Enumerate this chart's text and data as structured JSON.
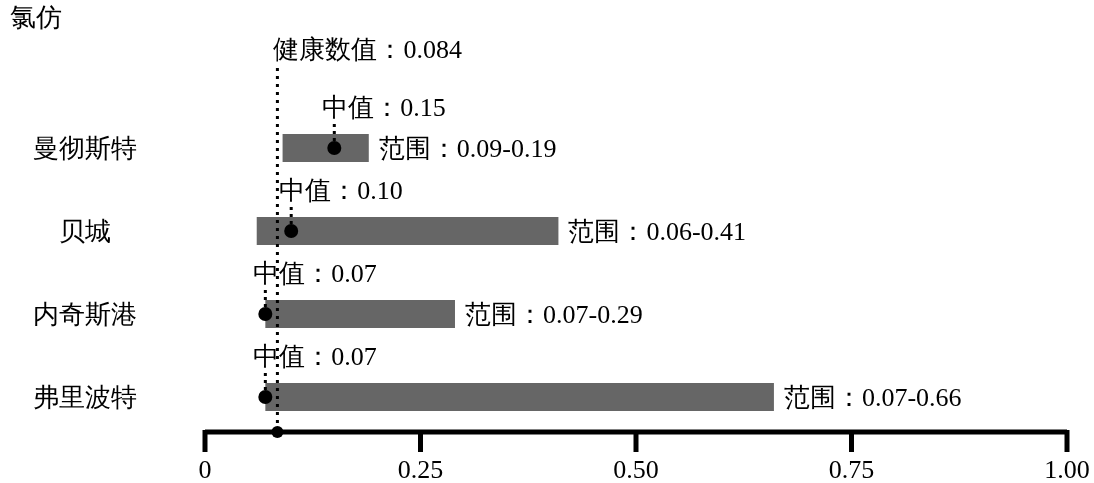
{
  "chart_data": {
    "type": "bar",
    "orientation": "horizontal",
    "title": "氯仿",
    "categories": [
      "曼彻斯特",
      "贝城",
      "内奇斯港",
      "弗里波特"
    ],
    "series": [
      {
        "color": "#666666",
        "base": [
          0.09,
          0.06,
          0.07,
          0.07
        ],
        "values": [
          0.1,
          0.35,
          0.22,
          0.59
        ],
        "value_labels": [
          "范围：0.09-0.19",
          "范围：0.06-0.41",
          "范围：0.07-0.29",
          "范围：0.07-0.66"
        ]
      },
      {
        "type": "scatter",
        "marker": "circle",
        "color": "#000000",
        "values": [
          0.15,
          0.1,
          0.07,
          0.07
        ],
        "value_labels": [
          "中值：0.15",
          "中值：0.10",
          "中值：0.07",
          "中值：0.07"
        ]
      }
    ],
    "ref_lines": [
      {
        "axis": "x",
        "value": 0.084,
        "label": "健康数值：0.084",
        "line_style": "dotted",
        "color": "#000000"
      }
    ],
    "xlim": [
      0,
      1
    ],
    "xticks": [
      0,
      0.25,
      {
        "value": 0.5,
        "label": "0.50"
      },
      {
        "value": 0.75,
        "label": "0.75"
      },
      {
        "value": 1,
        "label": "1.00"
      }
    ]
  }
}
